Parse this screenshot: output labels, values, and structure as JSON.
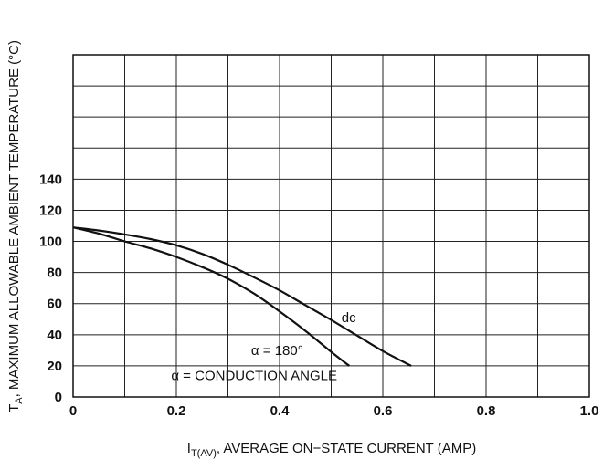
{
  "chart_data": {
    "type": "line",
    "xlabel": "I_T(AV), AVERAGE ON−STATE CURRENT (AMP)",
    "xlabel_main": "I",
    "xlabel_sub": "T(AV)",
    "xlabel_rest": ", AVERAGE ON−STATE CURRENT (AMP)",
    "ylabel": "T_A, MAXIMUM ALLOWABLE AMBIENT TEMPERATURE (°C)",
    "ylabel_main": "T",
    "ylabel_sub": "A",
    "ylabel_rest": ", MAXIMUM ALLOWABLE AMBIENT TEMPERATURE (°C)",
    "xlim": [
      0,
      1.0
    ],
    "ylim": [
      0,
      220
    ],
    "grid": true,
    "x_ticks": [
      0,
      0.1,
      0.2,
      0.3,
      0.4,
      0.5,
      0.6,
      0.7,
      0.8,
      0.9,
      1.0
    ],
    "x_tick_labels": [
      "0",
      "",
      "0.2",
      "",
      "0.4",
      "",
      "0.6",
      "",
      "0.8",
      "",
      "1.0"
    ],
    "y_ticks": [
      0,
      20,
      40,
      60,
      80,
      100,
      120,
      140,
      160,
      180,
      200,
      220
    ],
    "y_tick_labels": [
      "0",
      "20",
      "40",
      "60",
      "80",
      "100",
      "120",
      "140",
      "",
      "",
      "",
      ""
    ],
    "series": [
      {
        "name": "dc",
        "x": [
          0,
          0.05,
          0.1,
          0.15,
          0.2,
          0.25,
          0.3,
          0.35,
          0.4,
          0.45,
          0.5,
          0.55,
          0.6,
          0.655
        ],
        "y": [
          109,
          107,
          104.5,
          101.5,
          97.5,
          92,
          85,
          77,
          68.5,
          59,
          49.5,
          39.5,
          29.5,
          20
        ]
      },
      {
        "name": "α = 180°",
        "x": [
          0,
          0.05,
          0.1,
          0.15,
          0.2,
          0.25,
          0.3,
          0.35,
          0.4,
          0.45,
          0.5,
          0.535
        ],
        "y": [
          109,
          105,
          100,
          95.5,
          90,
          83.5,
          76,
          66.5,
          55,
          42.5,
          29,
          20
        ]
      }
    ],
    "annotations": [
      {
        "text": "dc",
        "x": 0.52,
        "y": 48
      },
      {
        "text": "α = 180°",
        "x": 0.345,
        "y": 27
      },
      {
        "text": "α = CONDUCTION ANGLE",
        "x": 0.19,
        "y": 11
      }
    ]
  }
}
